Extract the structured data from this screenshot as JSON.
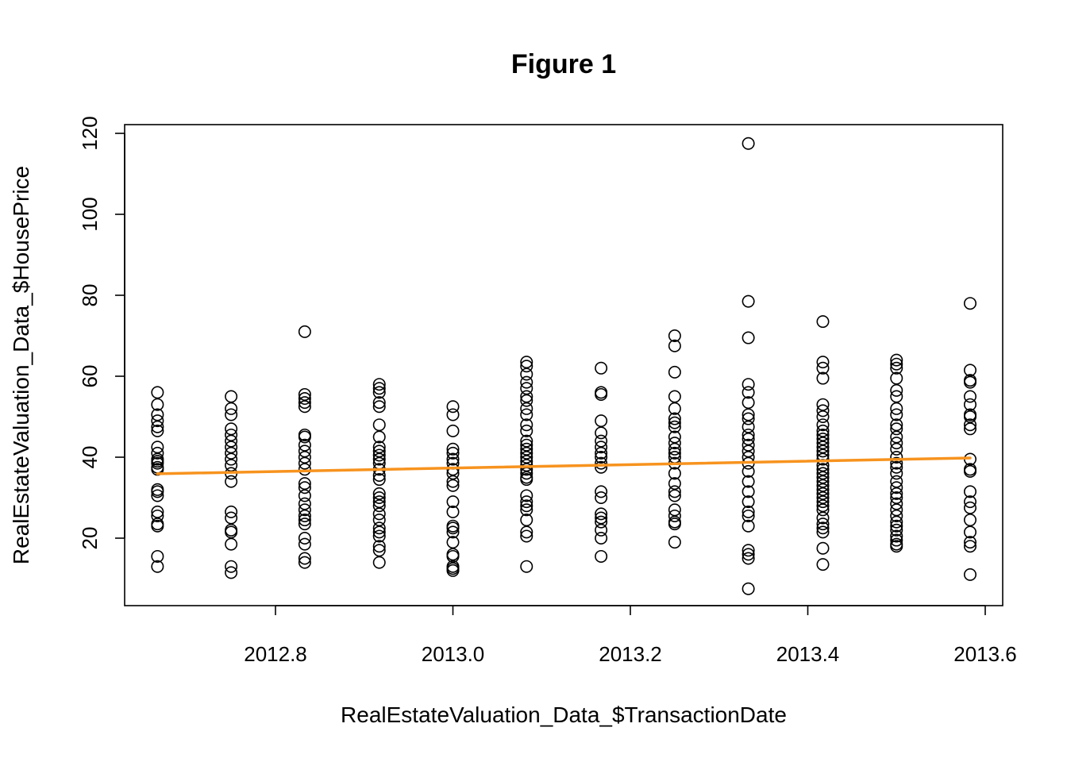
{
  "chart_data": {
    "type": "scatter",
    "title": "Figure 1",
    "xlabel": "RealEstateValuation_Data_$TransactionDate",
    "ylabel": "RealEstateValuation_Data_$HousePrice",
    "xlim": [
      2012.65,
      2013.6
    ],
    "ylim": [
      5,
      122
    ],
    "x_ticks": [
      2012.8,
      2013.0,
      2013.2,
      2013.4,
      2013.6
    ],
    "x_tick_labels": [
      "2012.8",
      "2013.0",
      "2013.2",
      "2013.4",
      "2013.6"
    ],
    "y_ticks": [
      20,
      40,
      60,
      80,
      100,
      120
    ],
    "y_tick_labels": [
      "20",
      "40",
      "60",
      "80",
      "100",
      "120"
    ],
    "trend_color": "#f7931e",
    "trend_line": {
      "x": [
        2012.667,
        2013.583
      ],
      "y": [
        35.9,
        39.8
      ]
    },
    "groups": [
      {
        "x": 2012.667,
        "y": [
          56.0,
          53.0,
          50.5,
          49.0,
          47.5,
          46.5,
          42.5,
          41.0,
          39.5,
          39.0,
          38.5,
          37.5,
          37.0,
          32.0,
          31.5,
          30.5,
          26.5,
          25.5,
          23.5,
          23.0,
          15.5,
          13.0
        ]
      },
      {
        "x": 2012.75,
        "y": [
          55.0,
          52.0,
          50.5,
          47.0,
          45.5,
          44.0,
          42.5,
          41.0,
          39.5,
          38.0,
          36.0,
          34.0,
          26.5,
          25.0,
          22.0,
          21.5,
          18.5,
          13.0,
          11.5
        ]
      },
      {
        "x": 2012.833,
        "y": [
          71.0,
          55.5,
          54.5,
          53.5,
          52.5,
          45.5,
          45.0,
          43.0,
          41.5,
          40.0,
          38.5,
          37.0,
          33.5,
          32.5,
          30.5,
          28.5,
          27.0,
          25.5,
          24.5,
          23.5,
          20.0,
          18.5,
          15.0,
          14.0
        ]
      },
      {
        "x": 2012.917,
        "y": [
          58.0,
          57.0,
          56.0,
          53.5,
          52.5,
          48.0,
          45.0,
          42.5,
          41.5,
          40.5,
          39.5,
          38.5,
          37.0,
          35.5,
          34.5,
          31.0,
          30.0,
          29.0,
          28.0,
          26.0,
          24.5,
          22.5,
          21.5,
          20.5,
          18.0,
          17.0,
          14.0
        ]
      },
      {
        "x": 2013.0,
        "y": [
          52.5,
          50.5,
          46.5,
          42.0,
          41.0,
          39.5,
          38.5,
          37.0,
          36.0,
          34.0,
          33.0,
          29.0,
          26.5,
          23.0,
          22.5,
          21.5,
          19.0,
          16.0,
          15.5,
          13.0,
          12.5,
          12.0
        ]
      },
      {
        "x": 2013.083,
        "y": [
          63.5,
          62.5,
          60.5,
          58.5,
          57.0,
          55.0,
          54.0,
          52.0,
          50.5,
          48.0,
          46.5,
          44.0,
          43.0,
          42.0,
          41.0,
          40.0,
          39.0,
          38.0,
          37.0,
          36.0,
          35.0,
          34.5,
          30.5,
          29.0,
          28.0,
          27.0,
          24.5,
          21.5,
          20.5,
          13.0
        ]
      },
      {
        "x": 2013.167,
        "y": [
          62.0,
          56.0,
          55.5,
          49.0,
          46.0,
          44.0,
          42.5,
          41.0,
          40.0,
          38.5,
          37.5,
          31.5,
          30.0,
          26.0,
          25.0,
          24.0,
          22.0,
          20.0,
          15.5
        ]
      },
      {
        "x": 2013.25,
        "y": [
          70.0,
          67.5,
          61.0,
          55.0,
          52.0,
          49.5,
          48.5,
          47.5,
          45.0,
          43.5,
          42.0,
          41.0,
          40.0,
          38.5,
          36.0,
          33.5,
          31.5,
          30.5,
          27.0,
          25.5,
          24.0,
          23.5,
          19.0
        ]
      },
      {
        "x": 2013.333,
        "y": [
          117.5,
          78.5,
          69.5,
          58.0,
          56.0,
          53.5,
          50.5,
          49.5,
          47.5,
          45.5,
          44.5,
          43.0,
          41.5,
          40.0,
          38.5,
          36.5,
          34.0,
          31.5,
          29.0,
          26.5,
          25.5,
          23.0,
          17.0,
          16.0,
          15.0,
          7.5
        ]
      },
      {
        "x": 2013.417,
        "y": [
          73.5,
          63.5,
          62.0,
          59.5,
          53.0,
          51.5,
          50.0,
          48.0,
          46.5,
          45.5,
          44.5,
          43.5,
          42.5,
          41.5,
          40.5,
          39.5,
          38.0,
          37.0,
          36.0,
          35.0,
          34.0,
          33.0,
          32.0,
          31.0,
          30.0,
          29.0,
          28.0,
          27.0,
          25.0,
          23.5,
          22.5,
          21.5,
          17.5,
          13.5
        ]
      },
      {
        "x": 2013.5,
        "y": [
          64.0,
          63.0,
          62.0,
          59.5,
          56.5,
          55.0,
          52.0,
          50.5,
          48.0,
          47.0,
          45.0,
          43.5,
          42.0,
          40.0,
          38.5,
          37.5,
          36.0,
          34.0,
          32.5,
          31.0,
          30.0,
          28.5,
          27.0,
          25.5,
          24.0,
          23.0,
          22.0,
          20.5,
          19.5,
          18.5,
          18.0
        ]
      },
      {
        "x": 2013.583,
        "y": [
          78.0,
          61.5,
          59.0,
          58.5,
          55.0,
          53.0,
          50.5,
          50.0,
          48.0,
          47.0,
          39.5,
          37.0,
          36.5,
          31.5,
          29.0,
          27.5,
          24.5,
          21.5,
          19.0,
          18.0,
          11.0
        ]
      }
    ]
  }
}
